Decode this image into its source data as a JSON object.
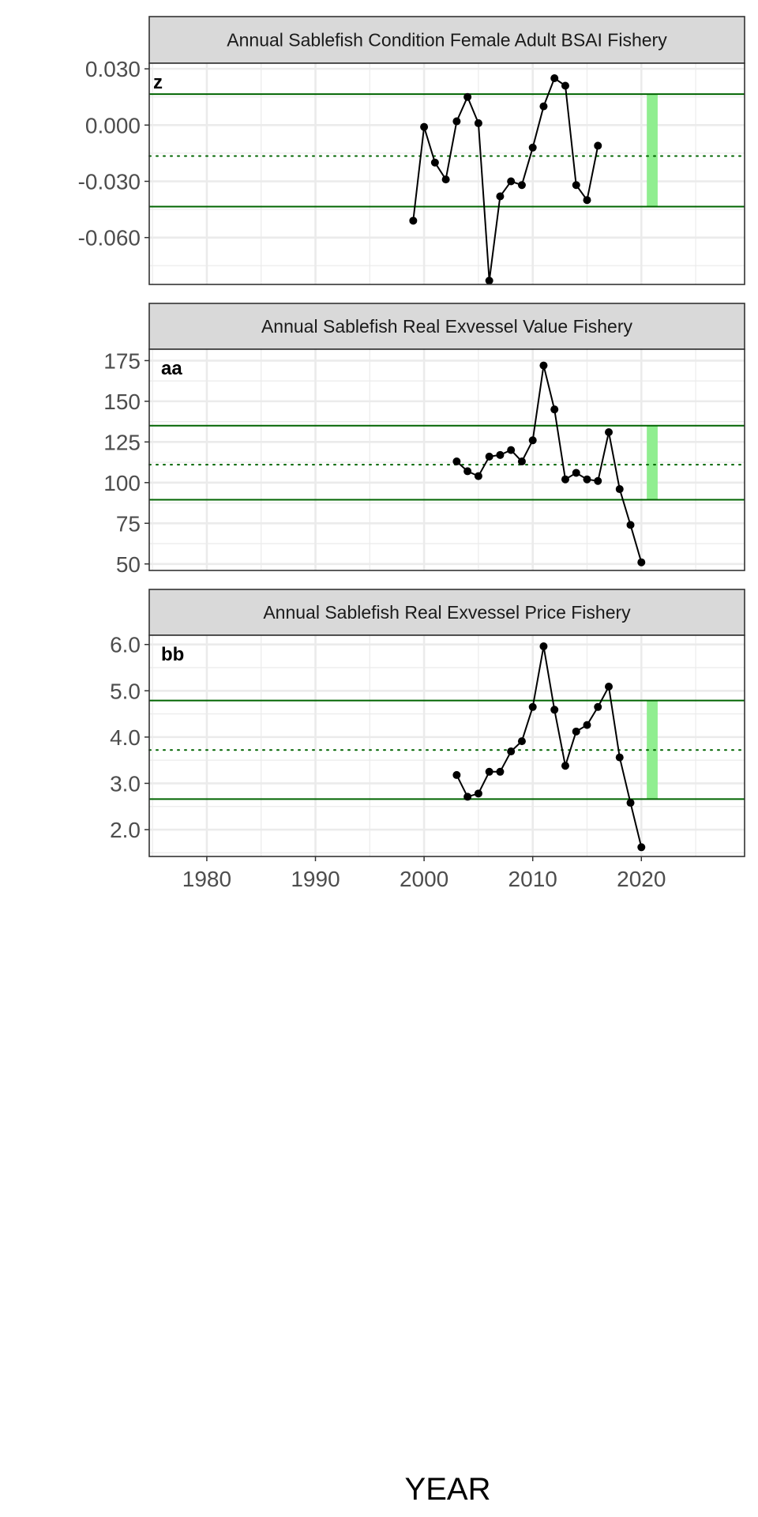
{
  "chart_data": [
    {
      "type": "line",
      "title": "Annual Sablefish Condition Female Adult BSAI Fishery",
      "tag": "z",
      "x": [
        1999,
        2000,
        2001,
        2002,
        2003,
        2004,
        2005,
        2006,
        2007,
        2008,
        2009,
        2010,
        2011,
        2012,
        2013,
        2014,
        2015,
        2016
      ],
      "y": [
        -0.051,
        -0.001,
        -0.02,
        -0.029,
        0.002,
        0.015,
        0.001,
        -0.083,
        -0.038,
        -0.03,
        -0.032,
        -0.012,
        0.01,
        0.025,
        0.021,
        -0.032,
        -0.04,
        -0.011
      ],
      "ylim": [
        -0.085,
        0.033
      ],
      "yticks": [
        -0.06,
        -0.03,
        0.0,
        0.03
      ],
      "ytick_labels": [
        "-0.060",
        "-0.030",
        "0.000",
        "0.030"
      ],
      "mean": -0.0165,
      "upper_sd": 0.0165,
      "lower_sd": -0.0435,
      "highlight_years": [
        2020.5,
        2021.5
      ]
    },
    {
      "type": "line",
      "title": "Annual Sablefish Real Exvessel Value Fishery",
      "tag": "aa",
      "x": [
        2003,
        2004,
        2005,
        2006,
        2007,
        2008,
        2009,
        2010,
        2011,
        2012,
        2013,
        2014,
        2015,
        2016,
        2017,
        2018,
        2019,
        2020
      ],
      "y": [
        113,
        107,
        104,
        116,
        117,
        120,
        113,
        126,
        172,
        145,
        102,
        106,
        102,
        101,
        131,
        96,
        74,
        51
      ],
      "ylim": [
        46,
        182
      ],
      "yticks": [
        50,
        75,
        100,
        125,
        150,
        175
      ],
      "ytick_labels": [
        "50",
        "75",
        "100",
        "125",
        "150",
        "175"
      ],
      "mean": 111,
      "upper_sd": 135,
      "lower_sd": 89.5,
      "highlight_years": [
        2020.5,
        2021.5
      ]
    },
    {
      "type": "line",
      "title": "Annual Sablefish Real Exvessel Price Fishery",
      "tag": "bb",
      "x": [
        2003,
        2004,
        2005,
        2006,
        2007,
        2008,
        2009,
        2010,
        2011,
        2012,
        2013,
        2014,
        2015,
        2016,
        2017,
        2018,
        2019,
        2020
      ],
      "y": [
        3.18,
        2.71,
        2.78,
        3.25,
        3.25,
        3.69,
        3.91,
        4.65,
        5.96,
        4.59,
        3.38,
        4.12,
        4.26,
        4.65,
        5.09,
        3.56,
        2.58,
        1.62
      ],
      "ylim": [
        1.42,
        6.2
      ],
      "yticks": [
        2.0,
        3.0,
        4.0,
        5.0,
        6.0
      ],
      "ytick_labels": [
        "2.0",
        "3.0",
        "4.0",
        "5.0",
        "6.0"
      ],
      "mean": 3.72,
      "upper_sd": 4.79,
      "lower_sd": 2.66,
      "highlight_years": [
        2020.5,
        2021.5
      ]
    }
  ],
  "shared": {
    "xlim": [
      1974.7,
      2029.5
    ],
    "xticks": [
      1980,
      1990,
      2000,
      2010,
      2020
    ],
    "xtick_labels": [
      "1980",
      "1990",
      "2000",
      "2010",
      "2020"
    ],
    "xlabel": "YEAR",
    "colors": {
      "strip_bg": "#d9d9d9",
      "panel_border": "#333333",
      "grid": "#ebebeb",
      "sd_line": "#006400",
      "mean_line": "#006400",
      "highlight": "#90ee90",
      "series": "#000000"
    }
  }
}
